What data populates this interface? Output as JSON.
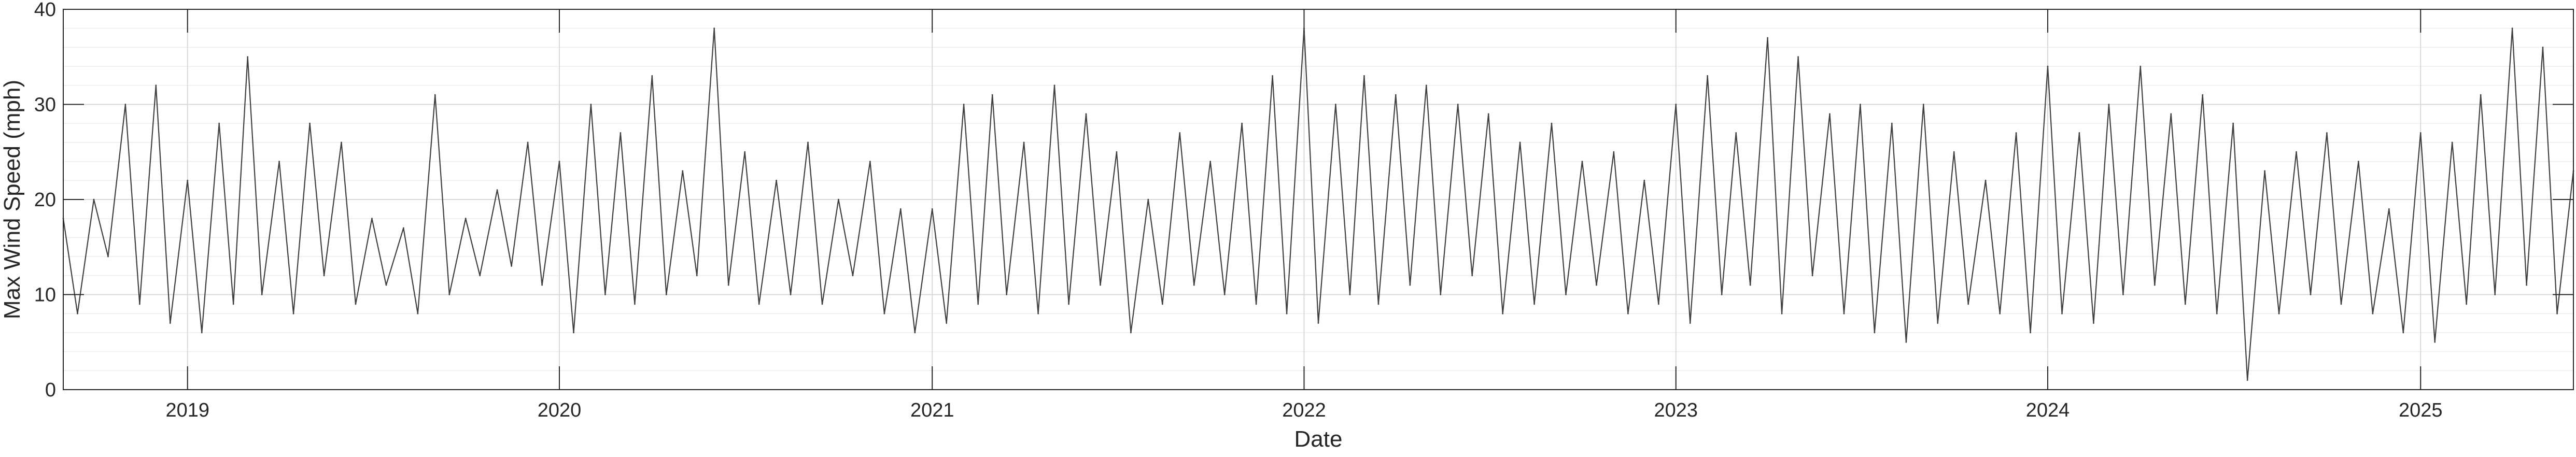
{
  "chart_data": {
    "type": "line",
    "title": "",
    "xlabel": "Date",
    "ylabel": "Max Wind Speed (mph)",
    "x_range": [
      "2018-09-01",
      "2025-05-31"
    ],
    "ylim": [
      0,
      40
    ],
    "x_ticks": [
      "2019",
      "2020",
      "2021",
      "2022",
      "2023",
      "2024",
      "2025"
    ],
    "y_ticks": [
      0,
      10,
      20,
      30,
      40
    ],
    "grid": true,
    "minor_grid": true,
    "legend": "none",
    "line_color": "#404040",
    "series": [
      {
        "dates": [
          "2018-09-01",
          "2018-09-15",
          "2018-10-01",
          "2018-10-15",
          "2018-11-01",
          "2018-11-15",
          "2018-12-01",
          "2018-12-15",
          "2019-01-01",
          "2019-01-15",
          "2019-02-01",
          "2019-02-15",
          "2019-03-01",
          "2019-03-15",
          "2019-04-01",
          "2019-04-15",
          "2019-05-01",
          "2019-05-15",
          "2019-06-01",
          "2019-06-15",
          "2019-07-01",
          "2019-07-15",
          "2019-08-01",
          "2019-08-15",
          "2019-09-01",
          "2019-09-15",
          "2019-10-01",
          "2019-10-15",
          "2019-11-01",
          "2019-11-15",
          "2019-12-01",
          "2019-12-15",
          "2020-01-01",
          "2020-01-15",
          "2020-02-01",
          "2020-02-15",
          "2020-03-01",
          "2020-03-15",
          "2020-04-01",
          "2020-04-15",
          "2020-05-01",
          "2020-05-15",
          "2020-06-01",
          "2020-06-15",
          "2020-07-01",
          "2020-07-15",
          "2020-08-01",
          "2020-08-15",
          "2020-09-01",
          "2020-09-15",
          "2020-10-01",
          "2020-10-15",
          "2020-11-01",
          "2020-11-15",
          "2020-12-01",
          "2020-12-15",
          "2021-01-01",
          "2021-01-15",
          "2021-02-01",
          "2021-02-15",
          "2021-03-01",
          "2021-03-15",
          "2021-04-01",
          "2021-04-15",
          "2021-05-01",
          "2021-05-15",
          "2021-06-01",
          "2021-06-15",
          "2021-07-01",
          "2021-07-15",
          "2021-08-01",
          "2021-08-15",
          "2021-09-01",
          "2021-09-15",
          "2021-10-01",
          "2021-10-15",
          "2021-11-01",
          "2021-11-15",
          "2021-12-01",
          "2021-12-15",
          "2022-01-01",
          "2022-01-15",
          "2022-02-01",
          "2022-02-15",
          "2022-03-01",
          "2022-03-15",
          "2022-04-01",
          "2022-04-15",
          "2022-05-01",
          "2022-05-15",
          "2022-06-01",
          "2022-06-15",
          "2022-07-01",
          "2022-07-15",
          "2022-08-01",
          "2022-08-15",
          "2022-09-01",
          "2022-09-15",
          "2022-10-01",
          "2022-10-15",
          "2022-11-01",
          "2022-11-15",
          "2022-12-01",
          "2022-12-15",
          "2023-01-01",
          "2023-01-15",
          "2023-02-01",
          "2023-02-15",
          "2023-03-01",
          "2023-03-15",
          "2023-04-01",
          "2023-04-15",
          "2023-05-01",
          "2023-05-15",
          "2023-06-01",
          "2023-06-15",
          "2023-07-01",
          "2023-07-15",
          "2023-08-01",
          "2023-08-15",
          "2023-09-01",
          "2023-09-15",
          "2023-10-01",
          "2023-10-15",
          "2023-11-01",
          "2023-11-15",
          "2023-12-01",
          "2023-12-15",
          "2024-01-01",
          "2024-01-15",
          "2024-02-01",
          "2024-02-15",
          "2024-03-01",
          "2024-03-15",
          "2024-04-01",
          "2024-04-15",
          "2024-05-01",
          "2024-05-15",
          "2024-06-01",
          "2024-06-15",
          "2024-07-01",
          "2024-07-15",
          "2024-08-01",
          "2024-08-15",
          "2024-09-01",
          "2024-09-15",
          "2024-10-01",
          "2024-10-15",
          "2024-11-01",
          "2024-11-15",
          "2024-12-01",
          "2024-12-15",
          "2025-01-01",
          "2025-01-15",
          "2025-02-01",
          "2025-02-15",
          "2025-03-01",
          "2025-03-15",
          "2025-04-01",
          "2025-04-15",
          "2025-05-01",
          "2025-05-15",
          "2025-05-31"
        ],
        "values": [
          18,
          8,
          20,
          14,
          30,
          9,
          32,
          7,
          22,
          6,
          28,
          9,
          35,
          10,
          24,
          8,
          28,
          12,
          26,
          9,
          18,
          11,
          17,
          8,
          31,
          10,
          18,
          12,
          21,
          13,
          26,
          11,
          24,
          6,
          30,
          10,
          27,
          9,
          33,
          10,
          23,
          12,
          38,
          11,
          25,
          9,
          22,
          10,
          26,
          9,
          20,
          12,
          24,
          8,
          19,
          6,
          19,
          7,
          30,
          9,
          31,
          10,
          26,
          8,
          32,
          9,
          29,
          11,
          25,
          6,
          20,
          9,
          27,
          11,
          24,
          10,
          28,
          9,
          33,
          8,
          38,
          7,
          30,
          10,
          33,
          9,
          31,
          11,
          32,
          10,
          30,
          12,
          29,
          8,
          26,
          9,
          28,
          10,
          24,
          11,
          25,
          8,
          22,
          9,
          30,
          7,
          33,
          10,
          27,
          11,
          37,
          8,
          35,
          12,
          29,
          8,
          30,
          6,
          28,
          5,
          30,
          7,
          25,
          9,
          22,
          8,
          27,
          6,
          34,
          8,
          27,
          7,
          30,
          10,
          34,
          11,
          29,
          9,
          31,
          8,
          28,
          1,
          23,
          8,
          25,
          10,
          27,
          9,
          24,
          8,
          19,
          6,
          27,
          5,
          26,
          9,
          31,
          10,
          38,
          11,
          36,
          8,
          23
        ]
      }
    ]
  }
}
